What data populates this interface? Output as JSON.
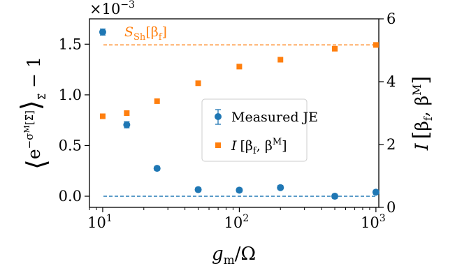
{
  "chart_data": {
    "type": "scatter",
    "x_scale": "log",
    "x_range": [
      8,
      1050
    ],
    "x_ticks": [
      {
        "value": 10,
        "base": "10",
        "exp": "1"
      },
      {
        "value": 100,
        "base": "10",
        "exp": "2"
      },
      {
        "value": 1000,
        "base": "10",
        "exp": "3"
      }
    ],
    "xlabel": {
      "main": "g",
      "sub": "m",
      "rest": "/Ω"
    },
    "y_left": {
      "range": [
        -0.00011,
        0.00175
      ],
      "ticks": [
        {
          "value": 0.0,
          "label": "0.0"
        },
        {
          "value": 0.0005,
          "label": "0.5"
        },
        {
          "value": 0.001,
          "label": "1.0"
        },
        {
          "value": 0.0015,
          "label": "1.5"
        }
      ],
      "offset_text": {
        "base": "×10",
        "exp": "−3"
      },
      "label": "⟨e^(−σ^M[Σ⃗])⟩_Σ⃗ − 1"
    },
    "y_right": {
      "range": [
        0,
        6
      ],
      "ticks": [
        {
          "value": 0,
          "label": "0"
        },
        {
          "value": 2,
          "label": "2"
        },
        {
          "value": 4,
          "label": "4"
        },
        {
          "value": 6,
          "label": "6"
        }
      ],
      "label": "I [β_f, β^M]"
    },
    "series": [
      {
        "name": "Measured JE",
        "axis": "left",
        "marker": "circle",
        "color": "#1f77b4",
        "errorbars": true,
        "points": [
          {
            "x": 10,
            "y": 0.00162,
            "err": 3e-05
          },
          {
            "x": 15,
            "y": 0.000705,
            "err": 3e-05
          },
          {
            "x": 25,
            "y": 0.000275,
            "err": 2e-05
          },
          {
            "x": 50,
            "y": 6.5e-05,
            "err": 2e-05
          },
          {
            "x": 100,
            "y": 6e-05,
            "err": 2e-05
          },
          {
            "x": 200,
            "y": 8.5e-05,
            "err": 2e-05
          },
          {
            "x": 500,
            "y": 0.0,
            "err": 2e-05
          },
          {
            "x": 1000,
            "y": 4e-05,
            "err": 2e-05
          }
        ]
      },
      {
        "name": "I [β_f, β^M]",
        "axis": "right",
        "marker": "square",
        "color": "#ff7f0e",
        "points": [
          {
            "x": 10,
            "y": 2.9
          },
          {
            "x": 15,
            "y": 3.0
          },
          {
            "x": 25,
            "y": 3.38
          },
          {
            "x": 50,
            "y": 3.95
          },
          {
            "x": 100,
            "y": 4.48
          },
          {
            "x": 200,
            "y": 4.7
          },
          {
            "x": 500,
            "y": 5.05
          },
          {
            "x": 1000,
            "y": 5.17
          }
        ]
      }
    ],
    "reference_lines": [
      {
        "axis": "left",
        "y": 0.0,
        "style": "dashed",
        "color": "#1f77b4",
        "label": ""
      },
      {
        "axis": "right",
        "y": 5.17,
        "style": "dashed",
        "color": "#ff7f0e",
        "label_main": "S",
        "label_sub": "Sh",
        "label_rest": "[β",
        "label_sub2": "f",
        "label_end": "]"
      }
    ],
    "legend": {
      "placement": "center-right",
      "entries": [
        {
          "series": 0,
          "text": "Measured JE"
        },
        {
          "series": 1,
          "text_main": "I",
          "text_open": "[β",
          "text_sub": "f",
          "text_mid": ", β",
          "text_sup": "M",
          "text_close": "]"
        }
      ]
    },
    "grid": false
  }
}
